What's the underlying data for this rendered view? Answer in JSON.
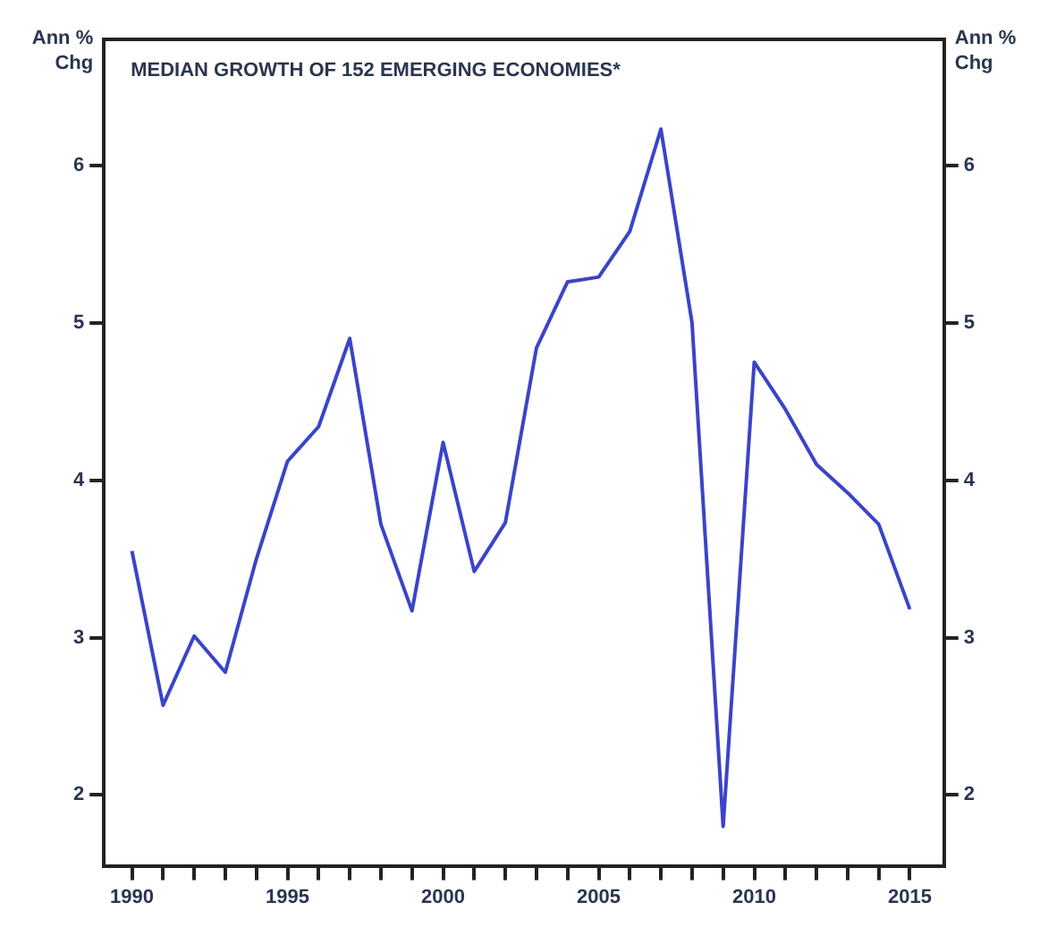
{
  "chart_data": {
    "type": "line",
    "title": "MEDIAN GROWTH OF 152 EMERGING ECONOMIES*",
    "ylabel": "Ann % Chg",
    "y2label": "Ann % Chg",
    "x": [
      1990,
      1991,
      1992,
      1993,
      1994,
      1995,
      1996,
      1997,
      1998,
      1999,
      2000,
      2001,
      2002,
      2003,
      2004,
      2005,
      2006,
      2007,
      2008,
      2009,
      2010,
      2011,
      2012,
      2013,
      2014,
      2015
    ],
    "series": [
      {
        "color": "#3b44c8",
        "values": [
          3.55,
          2.57,
          3.01,
          2.78,
          3.5,
          4.12,
          4.34,
          4.9,
          3.72,
          3.17,
          4.24,
          3.42,
          3.73,
          4.84,
          5.26,
          5.29,
          5.58,
          6.23,
          5.0,
          1.8,
          4.75,
          4.45,
          4.1,
          3.92,
          3.72,
          3.18
        ]
      }
    ],
    "xlim": [
      1989.1,
      2016.1
    ],
    "xticks": [
      1990,
      {
        "value": 1991,
        "label": null
      },
      {
        "value": 1992,
        "label": null
      },
      {
        "value": 1993,
        "label": null
      },
      {
        "value": 1994,
        "label": null
      },
      1995,
      {
        "value": 1996,
        "label": null
      },
      {
        "value": 1997,
        "label": null
      },
      {
        "value": 1998,
        "label": null
      },
      {
        "value": 1999,
        "label": null
      },
      2000,
      {
        "value": 2001,
        "label": null
      },
      {
        "value": 2002,
        "label": null
      },
      {
        "value": 2003,
        "label": null
      },
      {
        "value": 2004,
        "label": null
      },
      2005,
      {
        "value": 2006,
        "label": null
      },
      {
        "value": 2007,
        "label": null
      },
      {
        "value": 2008,
        "label": null
      },
      {
        "value": 2009,
        "label": null
      },
      2010,
      {
        "value": 2011,
        "label": null
      },
      {
        "value": 2012,
        "label": null
      },
      {
        "value": 2013,
        "label": null
      },
      {
        "value": 2014,
        "label": null
      },
      2015
    ],
    "ylim": [
      1.55,
      6.8
    ],
    "yticks": [
      2,
      3,
      4,
      5,
      6
    ],
    "y2lim": [
      1.55,
      6.8
    ],
    "y2ticks": [
      2,
      3,
      4,
      5,
      6
    ],
    "grid": false,
    "legend": false,
    "marker": "none",
    "line_style": "solid"
  }
}
